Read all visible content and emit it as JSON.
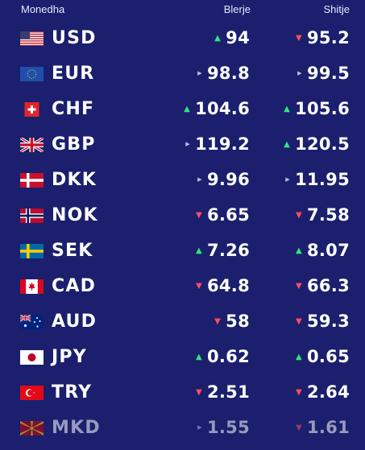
{
  "header": {
    "currency_label": "Monedha",
    "buy_label": "Blerje",
    "sell_label": "Shitje"
  },
  "colors": {
    "background": "#1b1f6e",
    "up": "#2ee67d",
    "down": "#ff4d5e",
    "flat": "#b8bedd"
  },
  "rows": [
    {
      "code": "USD",
      "flag": "us-flag-icon",
      "buy": "94",
      "buy_trend": "up",
      "sell": "95.2",
      "sell_trend": "down"
    },
    {
      "code": "EUR",
      "flag": "eu-flag-icon",
      "buy": "98.8",
      "buy_trend": "flat",
      "sell": "99.5",
      "sell_trend": "flat"
    },
    {
      "code": "CHF",
      "flag": "ch-flag-icon",
      "buy": "104.6",
      "buy_trend": "up",
      "sell": "105.6",
      "sell_trend": "up"
    },
    {
      "code": "GBP",
      "flag": "gb-flag-icon",
      "buy": "119.2",
      "buy_trend": "flat",
      "sell": "120.5",
      "sell_trend": "up"
    },
    {
      "code": "DKK",
      "flag": "dk-flag-icon",
      "buy": "9.96",
      "buy_trend": "flat",
      "sell": "11.95",
      "sell_trend": "flat"
    },
    {
      "code": "NOK",
      "flag": "no-flag-icon",
      "buy": "6.65",
      "buy_trend": "down",
      "sell": "7.58",
      "sell_trend": "down"
    },
    {
      "code": "SEK",
      "flag": "se-flag-icon",
      "buy": "7.26",
      "buy_trend": "up",
      "sell": "8.07",
      "sell_trend": "up"
    },
    {
      "code": "CAD",
      "flag": "ca-flag-icon",
      "buy": "64.8",
      "buy_trend": "down",
      "sell": "66.3",
      "sell_trend": "down"
    },
    {
      "code": "AUD",
      "flag": "au-flag-icon",
      "buy": "58",
      "buy_trend": "down",
      "sell": "59.3",
      "sell_trend": "down"
    },
    {
      "code": "JPY",
      "flag": "jp-flag-icon",
      "buy": "0.62",
      "buy_trend": "up",
      "sell": "0.65",
      "sell_trend": "up"
    },
    {
      "code": "TRY",
      "flag": "tr-flag-icon",
      "buy": "2.51",
      "buy_trend": "down",
      "sell": "2.64",
      "sell_trend": "down"
    },
    {
      "code": "MKD",
      "flag": "mk-flag-icon",
      "buy": "1.55",
      "buy_trend": "flat",
      "sell": "1.61",
      "sell_trend": "down"
    }
  ]
}
